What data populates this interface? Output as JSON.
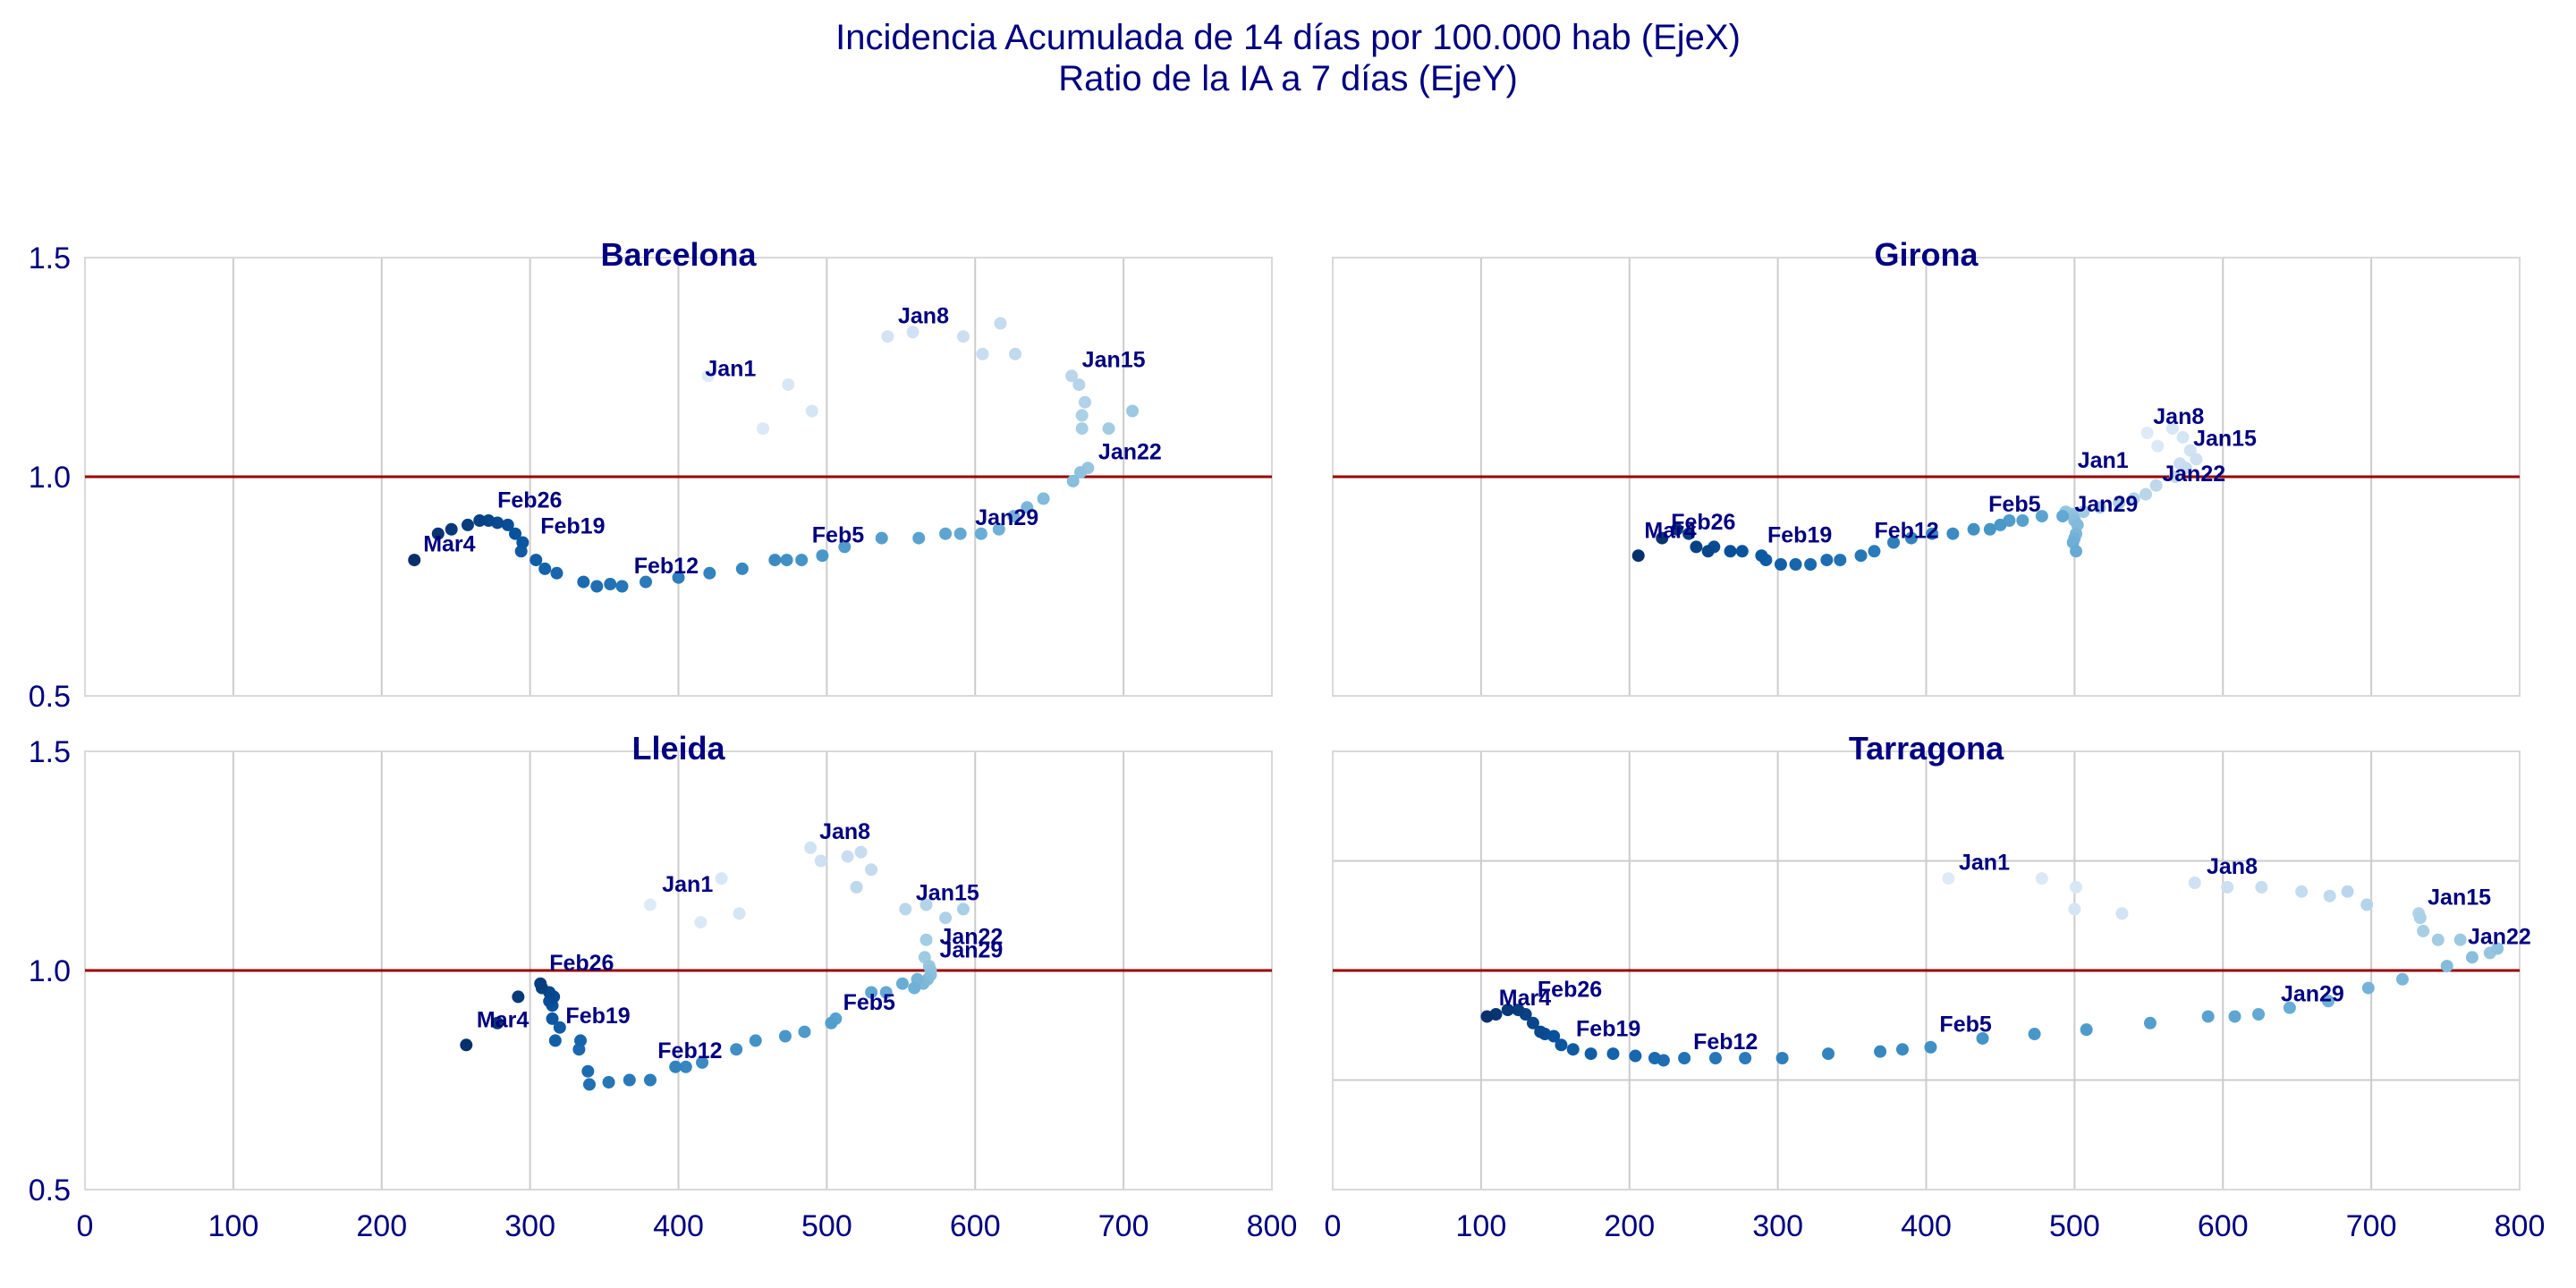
{
  "figure": {
    "title_line1": "Incidencia Acumulada de 14 días por 100.000 hab (EjeX)",
    "title_line2": "Ratio de la IA a 7 días (EjeY)"
  },
  "colors": {
    "title": "#000080",
    "reference_line": "#990000",
    "grid": "#cccccc",
    "frame": "#d9d9d9",
    "point_scale": [
      "#deebf7",
      "#c6dbef",
      "#9ecae1",
      "#6baed6",
      "#4292c6",
      "#2171b5",
      "#08519c",
      "#08306b"
    ]
  },
  "chart_data": [
    {
      "type": "scatter",
      "title": "Barcelona",
      "xlim": [
        0,
        800
      ],
      "ylim": [
        0.5,
        1.5
      ],
      "xticks": [
        0,
        100,
        200,
        300,
        400,
        500,
        600,
        700,
        800
      ],
      "yticks": [
        "0.5",
        "1.0",
        "1.5"
      ],
      "show_x_ticks": false,
      "show_y_ticks": true,
      "reference_y": 1.0,
      "grid": "vertical",
      "points": [
        [
          420,
          1.23
        ],
        [
          457,
          1.11
        ],
        [
          474,
          1.21
        ],
        [
          490,
          1.15
        ],
        [
          541,
          1.32
        ],
        [
          558,
          1.33
        ],
        [
          592,
          1.32
        ],
        [
          605,
          1.28
        ],
        [
          617,
          1.35
        ],
        [
          627,
          1.28
        ],
        [
          665,
          1.23
        ],
        [
          670,
          1.21
        ],
        [
          674,
          1.17
        ],
        [
          672,
          1.14
        ],
        [
          672,
          1.11
        ],
        [
          690,
          1.11
        ],
        [
          706,
          1.15
        ],
        [
          676,
          1.02
        ],
        [
          671,
          1.01
        ],
        [
          666,
          0.99
        ],
        [
          646,
          0.95
        ],
        [
          635,
          0.93
        ],
        [
          626,
          0.91
        ],
        [
          616,
          0.88
        ],
        [
          604,
          0.87
        ],
        [
          590,
          0.87
        ],
        [
          580,
          0.87
        ],
        [
          562,
          0.86
        ],
        [
          537,
          0.86
        ],
        [
          512,
          0.84
        ],
        [
          497,
          0.82
        ],
        [
          483,
          0.81
        ],
        [
          473,
          0.81
        ],
        [
          465,
          0.81
        ],
        [
          443,
          0.79
        ],
        [
          421,
          0.78
        ],
        [
          400,
          0.77
        ],
        [
          378,
          0.76
        ],
        [
          362,
          0.75
        ],
        [
          354,
          0.755
        ],
        [
          345,
          0.75
        ],
        [
          336,
          0.76
        ],
        [
          318,
          0.78
        ],
        [
          310,
          0.79
        ],
        [
          304,
          0.81
        ],
        [
          294,
          0.83
        ],
        [
          295,
          0.85
        ],
        [
          290,
          0.87
        ],
        [
          285,
          0.89
        ],
        [
          278,
          0.895
        ],
        [
          272,
          0.9
        ],
        [
          266,
          0.9
        ],
        [
          258,
          0.89
        ],
        [
          247,
          0.88
        ],
        [
          238,
          0.87
        ],
        [
          222,
          0.81
        ]
      ],
      "labels": [
        {
          "text": "Jan1",
          "x": 418,
          "y": 1.23
        },
        {
          "text": "Jan8",
          "x": 548,
          "y": 1.35
        },
        {
          "text": "Jan15",
          "x": 672,
          "y": 1.25
        },
        {
          "text": "Jan22",
          "x": 683,
          "y": 1.04
        },
        {
          "text": "Jan29",
          "x": 600,
          "y": 0.89
        },
        {
          "text": "Feb5",
          "x": 490,
          "y": 0.85
        },
        {
          "text": "Feb12",
          "x": 370,
          "y": 0.78
        },
        {
          "text": "Feb19",
          "x": 307,
          "y": 0.87
        },
        {
          "text": "Feb26",
          "x": 278,
          "y": 0.93
        },
        {
          "text": "Mar4",
          "x": 228,
          "y": 0.83
        }
      ]
    },
    {
      "type": "scatter",
      "title": "Girona",
      "xlim": [
        0,
        800
      ],
      "ylim": [
        0.5,
        1.5
      ],
      "xticks": [
        0,
        100,
        200,
        300,
        400,
        500,
        600,
        700,
        800
      ],
      "yticks": [
        "0.5",
        "1.0",
        "1.5"
      ],
      "show_x_ticks": false,
      "show_y_ticks": false,
      "reference_y": 1.0,
      "grid": "vertical",
      "points": [
        [
          549,
          1.1
        ],
        [
          556,
          1.07
        ],
        [
          566,
          1.11
        ],
        [
          573,
          1.09
        ],
        [
          578,
          1.06
        ],
        [
          582,
          1.04
        ],
        [
          571,
          1.03
        ],
        [
          575,
          1.02
        ],
        [
          568,
          1.0
        ],
        [
          555,
          0.98
        ],
        [
          548,
          0.96
        ],
        [
          540,
          0.95
        ],
        [
          530,
          0.94
        ],
        [
          517,
          0.93
        ],
        [
          506,
          0.92
        ],
        [
          498,
          0.915
        ],
        [
          494,
          0.92
        ],
        [
          499,
          0.91
        ],
        [
          500,
          0.9
        ],
        [
          502,
          0.89
        ],
        [
          501,
          0.87
        ],
        [
          500,
          0.86
        ],
        [
          499,
          0.85
        ],
        [
          501,
          0.83
        ],
        [
          492,
          0.91
        ],
        [
          478,
          0.91
        ],
        [
          465,
          0.9
        ],
        [
          456,
          0.9
        ],
        [
          450,
          0.89
        ],
        [
          443,
          0.88
        ],
        [
          432,
          0.88
        ],
        [
          418,
          0.87
        ],
        [
          404,
          0.87
        ],
        [
          390,
          0.86
        ],
        [
          378,
          0.85
        ],
        [
          365,
          0.83
        ],
        [
          356,
          0.82
        ],
        [
          342,
          0.81
        ],
        [
          333,
          0.81
        ],
        [
          322,
          0.8
        ],
        [
          312,
          0.8
        ],
        [
          302,
          0.8
        ],
        [
          292,
          0.81
        ],
        [
          289,
          0.82
        ],
        [
          276,
          0.83
        ],
        [
          268,
          0.83
        ],
        [
          257,
          0.84
        ],
        [
          253,
          0.83
        ],
        [
          245,
          0.84
        ],
        [
          240,
          0.87
        ],
        [
          232,
          0.88
        ],
        [
          222,
          0.86
        ],
        [
          206,
          0.82
        ]
      ],
      "labels": [
        {
          "text": "Jan8",
          "x": 553,
          "y": 1.12
        },
        {
          "text": "Jan15",
          "x": 580,
          "y": 1.07
        },
        {
          "text": "Jan1",
          "x": 502,
          "y": 1.02
        },
        {
          "text": "Jan22",
          "x": 559,
          "y": 0.99
        },
        {
          "text": "Jan29",
          "x": 500,
          "y": 0.92
        },
        {
          "text": "Feb5",
          "x": 442,
          "y": 0.92
        },
        {
          "text": "Feb12",
          "x": 365,
          "y": 0.86
        },
        {
          "text": "Feb19",
          "x": 293,
          "y": 0.85
        },
        {
          "text": "Feb26",
          "x": 228,
          "y": 0.88
        },
        {
          "text": "Mar4",
          "x": 210,
          "y": 0.86
        }
      ]
    },
    {
      "type": "scatter",
      "title": "Lleida",
      "xlim": [
        0,
        800
      ],
      "ylim": [
        0.5,
        1.5
      ],
      "xticks": [
        0,
        100,
        200,
        300,
        400,
        500,
        600,
        700,
        800
      ],
      "yticks": [
        "0.5",
        "1.0",
        "1.5"
      ],
      "show_x_ticks": true,
      "show_y_ticks": true,
      "reference_y": 1.0,
      "grid": "vertical",
      "points": [
        [
          381,
          1.15
        ],
        [
          415,
          1.11
        ],
        [
          429,
          1.21
        ],
        [
          441,
          1.13
        ],
        [
          489,
          1.28
        ],
        [
          496,
          1.25
        ],
        [
          514,
          1.26
        ],
        [
          523,
          1.27
        ],
        [
          530,
          1.23
        ],
        [
          520,
          1.19
        ],
        [
          553,
          1.14
        ],
        [
          567,
          1.15
        ],
        [
          580,
          1.12
        ],
        [
          592,
          1.14
        ],
        [
          567,
          1.07
        ],
        [
          566,
          1.03
        ],
        [
          569,
          1.01
        ],
        [
          570,
          1.0
        ],
        [
          570,
          0.99
        ],
        [
          568,
          0.98
        ],
        [
          565,
          0.97
        ],
        [
          561,
          0.98
        ],
        [
          559,
          0.96
        ],
        [
          551,
          0.97
        ],
        [
          540,
          0.95
        ],
        [
          530,
          0.95
        ],
        [
          506,
          0.89
        ],
        [
          503,
          0.88
        ],
        [
          485,
          0.86
        ],
        [
          472,
          0.85
        ],
        [
          452,
          0.84
        ],
        [
          439,
          0.82
        ],
        [
          416,
          0.79
        ],
        [
          405,
          0.78
        ],
        [
          398,
          0.78
        ],
        [
          381,
          0.75
        ],
        [
          367,
          0.75
        ],
        [
          353,
          0.745
        ],
        [
          340,
          0.74
        ],
        [
          339,
          0.77
        ],
        [
          333,
          0.82
        ],
        [
          334,
          0.84
        ],
        [
          317,
          0.84
        ],
        [
          320,
          0.87
        ],
        [
          315,
          0.89
        ],
        [
          315,
          0.92
        ],
        [
          313,
          0.93
        ],
        [
          316,
          0.94
        ],
        [
          313,
          0.95
        ],
        [
          308,
          0.96
        ],
        [
          307,
          0.97
        ],
        [
          292,
          0.94
        ],
        [
          278,
          0.88
        ],
        [
          257,
          0.83
        ]
      ],
      "labels": [
        {
          "text": "Jan8",
          "x": 495,
          "y": 1.3
        },
        {
          "text": "Jan1",
          "x": 389,
          "y": 1.18
        },
        {
          "text": "Jan15",
          "x": 560,
          "y": 1.16
        },
        {
          "text": "Jan22",
          "x": 576,
          "y": 1.06
        },
        {
          "text": "Jan29",
          "x": 576,
          "y": 1.03
        },
        {
          "text": "Feb26",
          "x": 313,
          "y": 1.0
        },
        {
          "text": "Feb5",
          "x": 511,
          "y": 0.91
        },
        {
          "text": "Feb19",
          "x": 324,
          "y": 0.88
        },
        {
          "text": "Mar4",
          "x": 264,
          "y": 0.87
        },
        {
          "text": "Feb12",
          "x": 386,
          "y": 0.8
        }
      ]
    },
    {
      "type": "scatter",
      "title": "Tarragona",
      "xlim": [
        0,
        800
      ],
      "ylim": [
        0.5,
        1.5
      ],
      "xticks": [
        0,
        100,
        200,
        300,
        400,
        500,
        600,
        700,
        800
      ],
      "yticks": [
        "0.5",
        "1.0",
        "1.5"
      ],
      "show_x_ticks": true,
      "show_y_ticks": false,
      "reference_y": 1.0,
      "grid": "both",
      "hgrid_values": [
        0.75,
        1.25
      ],
      "points": [
        [
          415,
          1.21
        ],
        [
          478,
          1.21
        ],
        [
          501,
          1.19
        ],
        [
          500,
          1.14
        ],
        [
          532,
          1.13
        ],
        [
          581,
          1.2
        ],
        [
          603,
          1.19
        ],
        [
          626,
          1.19
        ],
        [
          653,
          1.18
        ],
        [
          672,
          1.17
        ],
        [
          684,
          1.18
        ],
        [
          697,
          1.15
        ],
        [
          732,
          1.13
        ],
        [
          733,
          1.12
        ],
        [
          735,
          1.09
        ],
        [
          745,
          1.07
        ],
        [
          760,
          1.07
        ],
        [
          780,
          1.04
        ],
        [
          785,
          1.05
        ],
        [
          768,
          1.03
        ],
        [
          751,
          1.01
        ],
        [
          721,
          0.98
        ],
        [
          698,
          0.96
        ],
        [
          671,
          0.93
        ],
        [
          645,
          0.915
        ],
        [
          624,
          0.9
        ],
        [
          608,
          0.895
        ],
        [
          590,
          0.895
        ],
        [
          551,
          0.88
        ],
        [
          508,
          0.865
        ],
        [
          473,
          0.855
        ],
        [
          438,
          0.845
        ],
        [
          403,
          0.825
        ],
        [
          384,
          0.82
        ],
        [
          369,
          0.815
        ],
        [
          334,
          0.81
        ],
        [
          303,
          0.8
        ],
        [
          278,
          0.8
        ],
        [
          258,
          0.8
        ],
        [
          237,
          0.8
        ],
        [
          223,
          0.795
        ],
        [
          217,
          0.8
        ],
        [
          204,
          0.805
        ],
        [
          189,
          0.81
        ],
        [
          174,
          0.81
        ],
        [
          162,
          0.82
        ],
        [
          154,
          0.83
        ],
        [
          149,
          0.85
        ],
        [
          143,
          0.855
        ],
        [
          140,
          0.86
        ],
        [
          135,
          0.88
        ],
        [
          130,
          0.9
        ],
        [
          125,
          0.91
        ],
        [
          118,
          0.91
        ],
        [
          110,
          0.9
        ],
        [
          104,
          0.895
        ]
      ],
      "labels": [
        {
          "text": "Jan1",
          "x": 422,
          "y": 1.23
        },
        {
          "text": "Jan8",
          "x": 589,
          "y": 1.22
        },
        {
          "text": "Jan15",
          "x": 738,
          "y": 1.15
        },
        {
          "text": "Jan22",
          "x": 765,
          "y": 1.06
        },
        {
          "text": "Jan29",
          "x": 639,
          "y": 0.93
        },
        {
          "text": "Feb5",
          "x": 409,
          "y": 0.86
        },
        {
          "text": "Feb12",
          "x": 243,
          "y": 0.82
        },
        {
          "text": "Feb19",
          "x": 164,
          "y": 0.85
        },
        {
          "text": "Feb26",
          "x": 138,
          "y": 0.94
        },
        {
          "text": "Mar4",
          "x": 112,
          "y": 0.92
        }
      ]
    }
  ]
}
